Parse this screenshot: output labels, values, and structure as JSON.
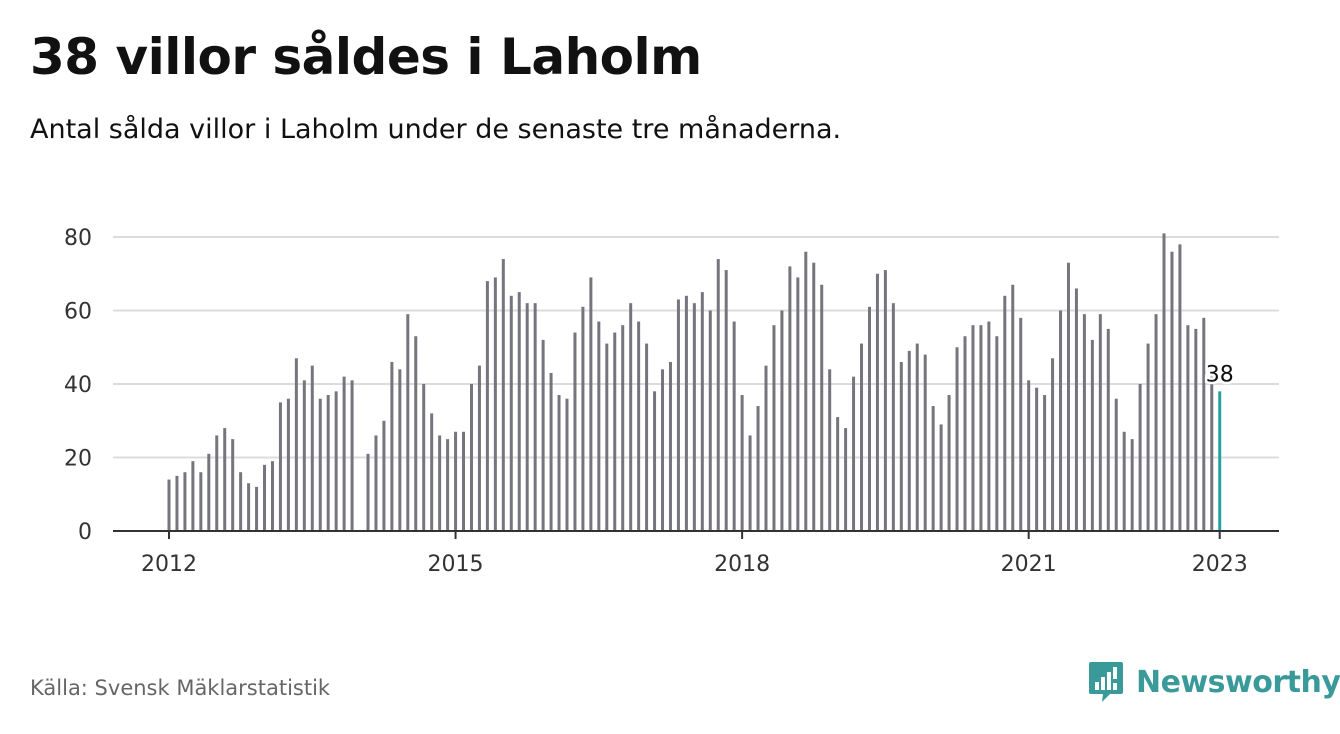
{
  "title": "38 villor såldes i Laholm",
  "subtitle": "Antal sålda villor i Laholm under de senaste tre månaderna.",
  "source": "Källa: Svensk Mäklarstatistik",
  "brand": {
    "name": "Newsworthy",
    "icon": "newsworthy-logo-icon",
    "color": "#3a9a9a"
  },
  "colors": {
    "bar": "#75757d",
    "highlight": "#22a39f",
    "grid": "#dcdcdc",
    "axis": "#333333"
  },
  "chart_data": {
    "type": "bar",
    "ylim": [
      0,
      80
    ],
    "yticks": [
      0,
      20,
      40,
      60,
      80
    ],
    "xtick_labels": [
      "2012",
      "2015",
      "2018",
      "2021",
      "2023"
    ],
    "xtick_months": [
      0,
      36,
      72,
      108,
      132
    ],
    "grid": true,
    "start": "2012-01",
    "end": "2023-01",
    "values": [
      14,
      15,
      16,
      19,
      16,
      21,
      26,
      28,
      25,
      16,
      13,
      12,
      18,
      19,
      35,
      36,
      47,
      41,
      45,
      36,
      37,
      38,
      42,
      41,
      null,
      21,
      26,
      30,
      46,
      44,
      59,
      53,
      40,
      32,
      26,
      25,
      27,
      27,
      40,
      45,
      68,
      69,
      74,
      64,
      65,
      62,
      62,
      52,
      43,
      37,
      36,
      54,
      61,
      69,
      57,
      51,
      54,
      56,
      62,
      57,
      51,
      38,
      44,
      46,
      63,
      64,
      62,
      65,
      60,
      74,
      71,
      57,
      37,
      26,
      34,
      45,
      56,
      60,
      72,
      69,
      76,
      73,
      67,
      44,
      31,
      28,
      42,
      51,
      61,
      70,
      71,
      62,
      46,
      49,
      51,
      48,
      34,
      29,
      37,
      50,
      53,
      56,
      56,
      57,
      53,
      64,
      67,
      58,
      41,
      39,
      37,
      47,
      60,
      73,
      66,
      59,
      52,
      59,
      55,
      36,
      27,
      25,
      40,
      51,
      59,
      81,
      76,
      78,
      56,
      55,
      58,
      42,
      38
    ],
    "highlight_label": "38"
  }
}
